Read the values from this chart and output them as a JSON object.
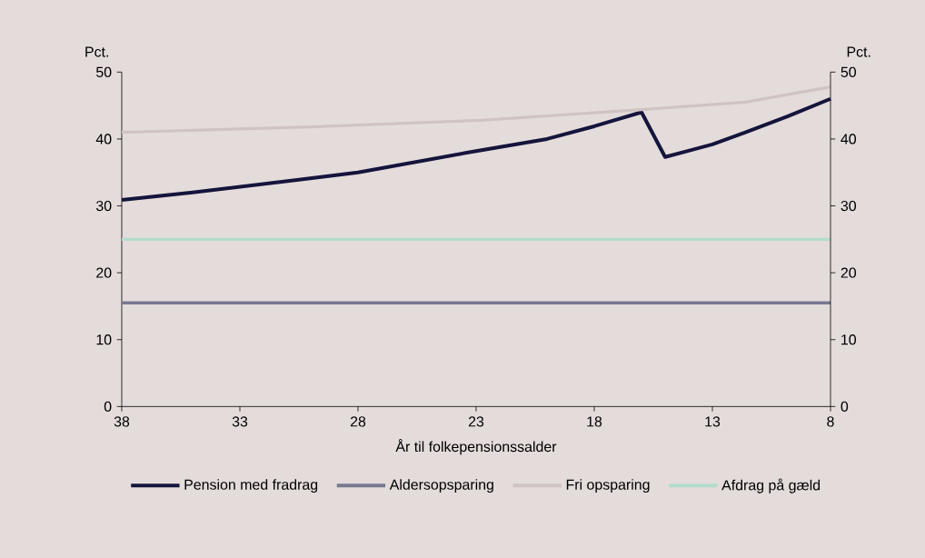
{
  "chart_data": {
    "type": "line",
    "xlabel": "År til folkepensionssalder",
    "ylabel": "Pct.",
    "y2label": "Pct.",
    "xlim": [
      38,
      8
    ],
    "xticks": [
      38,
      33,
      28,
      23,
      18,
      13,
      8
    ],
    "ylim": [
      0,
      50
    ],
    "yticks": [
      0,
      10,
      20,
      30,
      40,
      50
    ],
    "y2lim": [
      0,
      50
    ],
    "y2ticks": [
      0,
      10,
      20,
      30,
      40,
      50
    ],
    "legend": "bottom",
    "grid": false,
    "marker": "none",
    "line_style": "solid",
    "series": [
      {
        "name": "Pension med fradrag",
        "color": "#14143c",
        "x": [
          38,
          35,
          30.5,
          28,
          23,
          20,
          18,
          16,
          15,
          13,
          11.6,
          9.8,
          8
        ],
        "values": [
          30.9,
          32.0,
          33.9,
          35.0,
          38.2,
          40.0,
          41.9,
          44.0,
          37.3,
          39.2,
          41.0,
          43.4,
          46.0
        ]
      },
      {
        "name": "Aldersopsparing",
        "color": "#787890",
        "x": [
          38,
          8
        ],
        "values": [
          15.5,
          15.5
        ]
      },
      {
        "name": "Fri opsparing",
        "color": "#d0c4c2",
        "x": [
          38,
          30,
          22.8,
          16,
          11.6,
          8
        ],
        "values": [
          41.0,
          41.8,
          42.8,
          44.4,
          45.5,
          47.8
        ]
      },
      {
        "name": "Afdrag på gæld",
        "color": "#b4dccc",
        "x": [
          38,
          8
        ],
        "values": [
          25.0,
          25.0
        ]
      }
    ]
  }
}
